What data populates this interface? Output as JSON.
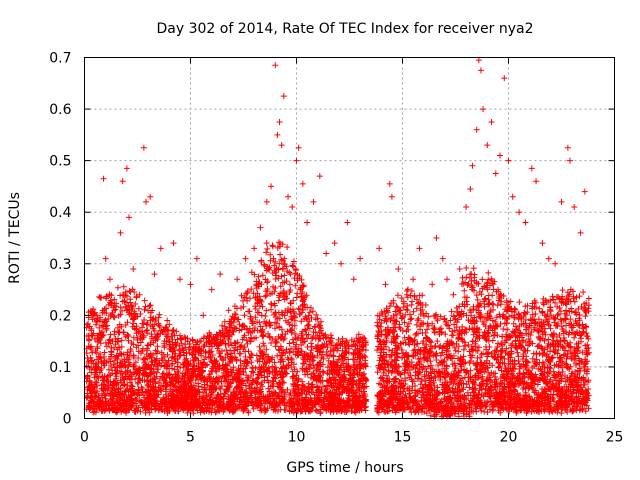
{
  "chart_data": {
    "type": "scatter",
    "title": "Day 302 of 2014, Rate Of TEC Index for receiver nya2",
    "xlabel": "GPS time / hours",
    "ylabel": "ROTI / TECUs",
    "xlim": [
      0,
      25
    ],
    "ylim": [
      0,
      0.7
    ],
    "xticks": [
      "0",
      "5",
      "10",
      "15",
      "20",
      "25"
    ],
    "yticks": [
      "0",
      "0.1",
      "0.2",
      "0.3",
      "0.4",
      "0.5",
      "0.6",
      "0.7"
    ],
    "grid": true,
    "marker": "+",
    "series": [
      {
        "name": "ROTI",
        "color": "#ff0000",
        "data_gap_hours": [
          13.3,
          13.8
        ],
        "points": [
          [
            0.3,
            0.06
          ],
          [
            0.6,
            0.19
          ],
          [
            0.9,
            0.465
          ],
          [
            1.0,
            0.31
          ],
          [
            1.2,
            0.27
          ],
          [
            1.5,
            0.12
          ],
          [
            1.7,
            0.36
          ],
          [
            1.8,
            0.46
          ],
          [
            2.0,
            0.485
          ],
          [
            2.1,
            0.39
          ],
          [
            2.3,
            0.29
          ],
          [
            2.6,
            0.24
          ],
          [
            2.8,
            0.525
          ],
          [
            2.9,
            0.42
          ],
          [
            3.1,
            0.43
          ],
          [
            3.3,
            0.28
          ],
          [
            3.6,
            0.33
          ],
          [
            3.9,
            0.19
          ],
          [
            4.2,
            0.34
          ],
          [
            4.5,
            0.27
          ],
          [
            5.0,
            0.26
          ],
          [
            5.3,
            0.31
          ],
          [
            5.6,
            0.2
          ],
          [
            6.0,
            0.25
          ],
          [
            6.4,
            0.28
          ],
          [
            6.8,
            0.21
          ],
          [
            7.2,
            0.27
          ],
          [
            7.6,
            0.31
          ],
          [
            8.0,
            0.33
          ],
          [
            8.3,
            0.37
          ],
          [
            8.6,
            0.42
          ],
          [
            8.8,
            0.45
          ],
          [
            9.0,
            0.685
          ],
          [
            9.1,
            0.55
          ],
          [
            9.2,
            0.575
          ],
          [
            9.3,
            0.53
          ],
          [
            9.4,
            0.625
          ],
          [
            9.6,
            0.43
          ],
          [
            9.8,
            0.41
          ],
          [
            10.0,
            0.5
          ],
          [
            10.1,
            0.525
          ],
          [
            10.3,
            0.455
          ],
          [
            10.5,
            0.38
          ],
          [
            10.8,
            0.42
          ],
          [
            11.1,
            0.47
          ],
          [
            11.4,
            0.32
          ],
          [
            11.8,
            0.34
          ],
          [
            12.1,
            0.3
          ],
          [
            12.4,
            0.38
          ],
          [
            12.7,
            0.27
          ],
          [
            13.0,
            0.31
          ],
          [
            13.9,
            0.33
          ],
          [
            14.2,
            0.26
          ],
          [
            14.4,
            0.455
          ],
          [
            14.5,
            0.43
          ],
          [
            14.8,
            0.29
          ],
          [
            15.2,
            0.24
          ],
          [
            15.5,
            0.27
          ],
          [
            15.8,
            0.33
          ],
          [
            16.1,
            0.22
          ],
          [
            16.4,
            0.26
          ],
          [
            16.6,
            0.35
          ],
          [
            16.9,
            0.31
          ],
          [
            17.1,
            0.27
          ],
          [
            17.4,
            0.24
          ],
          [
            17.7,
            0.29
          ],
          [
            18.0,
            0.41
          ],
          [
            18.2,
            0.445
          ],
          [
            18.3,
            0.49
          ],
          [
            18.5,
            0.56
          ],
          [
            18.6,
            0.695
          ],
          [
            18.7,
            0.675
          ],
          [
            18.8,
            0.6
          ],
          [
            19.0,
            0.53
          ],
          [
            19.2,
            0.575
          ],
          [
            19.4,
            0.475
          ],
          [
            19.6,
            0.51
          ],
          [
            19.8,
            0.66
          ],
          [
            20.0,
            0.5
          ],
          [
            20.2,
            0.43
          ],
          [
            20.5,
            0.4
          ],
          [
            20.8,
            0.38
          ],
          [
            21.1,
            0.485
          ],
          [
            21.3,
            0.46
          ],
          [
            21.6,
            0.34
          ],
          [
            21.9,
            0.31
          ],
          [
            22.2,
            0.3
          ],
          [
            22.5,
            0.42
          ],
          [
            22.8,
            0.525
          ],
          [
            22.9,
            0.5
          ],
          [
            23.1,
            0.41
          ],
          [
            23.4,
            0.36
          ],
          [
            23.6,
            0.44
          ]
        ]
      }
    ]
  }
}
